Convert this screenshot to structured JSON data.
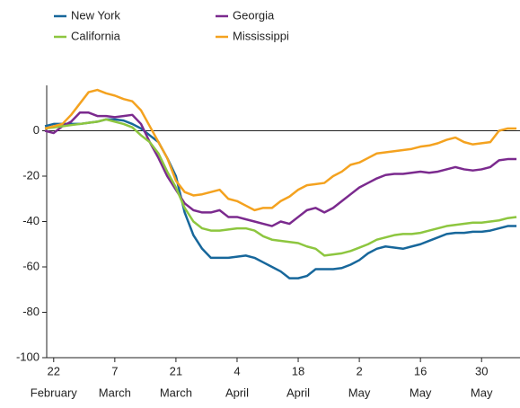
{
  "chart_data": {
    "type": "line",
    "x": [
      -2,
      0,
      2,
      4,
      6,
      8,
      10,
      12,
      14,
      16,
      18,
      20,
      22,
      24,
      26,
      28,
      30,
      32,
      34,
      36,
      38,
      40,
      42,
      44,
      46,
      48,
      50,
      52,
      54,
      56,
      58,
      60,
      62,
      64,
      66,
      68,
      70,
      72,
      74,
      76,
      78,
      80,
      82,
      84,
      86,
      88,
      90,
      92,
      94,
      96,
      98,
      100,
      102,
      104,
      106
    ],
    "series": [
      {
        "name": "New York",
        "color": "#17679b",
        "values": [
          2,
          3,
          3,
          3,
          3,
          3.5,
          4,
          5,
          5,
          4.5,
          3,
          1,
          -2,
          -5,
          -12,
          -20,
          -36,
          -46,
          -52,
          -56,
          -56,
          -56,
          -55.5,
          -55,
          -56,
          -58,
          -60,
          -62,
          -65,
          -65,
          -64,
          -61,
          -61,
          -61,
          -60.5,
          -59,
          -57,
          -54,
          -52,
          -51,
          -51.5,
          -52,
          -51,
          -50,
          -48.5,
          -47,
          -45.5,
          -45,
          -45,
          -44.5,
          -44.5,
          -44,
          -43,
          -42,
          -42
        ]
      },
      {
        "name": "Georgia",
        "color": "#7b2a8e",
        "values": [
          0,
          -1,
          2,
          4,
          8,
          8,
          6.5,
          6.5,
          6,
          6.5,
          7,
          3,
          -5,
          -12,
          -20,
          -26,
          -32,
          -35,
          -36,
          -36,
          -35,
          -38,
          -38,
          -39,
          -40,
          -41,
          -42,
          -40,
          -41,
          -38,
          -35,
          -34,
          -36,
          -34,
          -31,
          -28,
          -25,
          -23,
          -21,
          -19.5,
          -19,
          -19,
          -18.5,
          -18,
          -18.5,
          -18,
          -17,
          -16,
          -17,
          -17.5,
          -17,
          -16,
          -13,
          -12.5,
          -12.5
        ]
      },
      {
        "name": "California",
        "color": "#8dc63f",
        "values": [
          1,
          1.5,
          2,
          2.5,
          3,
          3.5,
          4,
          5,
          4,
          3,
          1.5,
          -2,
          -5,
          -10,
          -18,
          -25,
          -34,
          -40,
          -43,
          -44,
          -44,
          -43.5,
          -43,
          -43,
          -44,
          -46.5,
          -48,
          -48.5,
          -49,
          -49.5,
          -51,
          -52,
          -55,
          -54.5,
          -54,
          -53,
          -51.5,
          -50,
          -48,
          -47,
          -46,
          -45.5,
          -45.5,
          -45,
          -44,
          -43,
          -42,
          -41.5,
          -41,
          -40.5,
          -40.5,
          -40,
          -39.5,
          -38.5,
          -38
        ]
      },
      {
        "name": "Mississippi",
        "color": "#f4a21f",
        "values": [
          1,
          2,
          3,
          7,
          12,
          17,
          18,
          16.5,
          15.5,
          14,
          13,
          9,
          2,
          -5,
          -12,
          -22,
          -27,
          -28.5,
          -28,
          -27,
          -26,
          -30,
          -31,
          -33,
          -35,
          -34,
          -34,
          -31,
          -29,
          -26,
          -24,
          -23.5,
          -23,
          -20,
          -18,
          -15,
          -14,
          -12,
          -10,
          -9.5,
          -9,
          -8.5,
          -8,
          -7,
          -6.5,
          -5.5,
          -4,
          -3,
          -5,
          -6,
          -5.5,
          -5,
          0,
          1,
          1
        ]
      }
    ],
    "xlim": [
      -1.6,
      106.8
    ],
    "xticks": [
      {
        "value": 0,
        "label": [
          "22",
          "February"
        ]
      },
      {
        "value": 14,
        "label": [
          "7",
          "March"
        ]
      },
      {
        "value": 28,
        "label": [
          "21",
          "March"
        ]
      },
      {
        "value": 42,
        "label": [
          "4",
          "April"
        ]
      },
      {
        "value": 56,
        "label": [
          "18",
          "April"
        ]
      },
      {
        "value": 70,
        "label": [
          "2",
          "May"
        ]
      },
      {
        "value": 84,
        "label": [
          "16",
          "May"
        ]
      },
      {
        "value": 98,
        "label": [
          "30",
          "May"
        ]
      }
    ],
    "ylim": [
      -100,
      20
    ],
    "yticks": [
      0,
      -20,
      -40,
      -60,
      -80,
      -100
    ],
    "grid": false
  }
}
